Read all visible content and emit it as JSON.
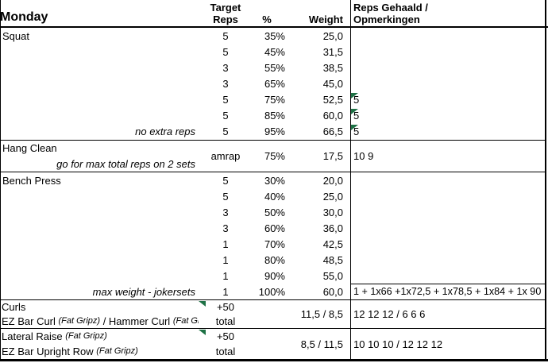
{
  "sheet": {
    "title": "Monday",
    "flag_color": "#1e7145",
    "header": {
      "reps_line1": "Target",
      "reps_line2": "Reps",
      "pct": "%",
      "weight": "Weight",
      "result_line1": "Reps Gehaald /",
      "result_line2": "Opmerkingen"
    },
    "sections": [
      {
        "name": "Squat",
        "type": "rows",
        "rows": [
          {
            "reps": "5",
            "pct": "35%",
            "weight": "25,0"
          },
          {
            "reps": "5",
            "pct": "45%",
            "weight": "31,5"
          },
          {
            "reps": "3",
            "pct": "55%",
            "weight": "38,5"
          },
          {
            "reps": "3",
            "pct": "65%",
            "weight": "45,0"
          },
          {
            "reps": "5",
            "pct": "75%",
            "weight": "52,5",
            "result": "5",
            "result_flag": true
          },
          {
            "reps": "5",
            "pct": "85%",
            "weight": "60,0",
            "result": "5",
            "result_flag": true
          },
          {
            "note": "no extra reps",
            "reps": "5",
            "pct": "95%",
            "weight": "66,5",
            "result": "5",
            "result_flag": true
          }
        ]
      },
      {
        "name": "Hang Clean",
        "type": "merged",
        "note": "go for max total reps on 2 sets",
        "reps": "amrap",
        "pct": "75%",
        "weight": "17,5",
        "result": "10 9"
      },
      {
        "name": "Bench Press",
        "type": "rows",
        "rows": [
          {
            "reps": "5",
            "pct": "30%",
            "weight": "20,0"
          },
          {
            "reps": "5",
            "pct": "40%",
            "weight": "25,0"
          },
          {
            "reps": "3",
            "pct": "50%",
            "weight": "30,0"
          },
          {
            "reps": "3",
            "pct": "60%",
            "weight": "36,0"
          },
          {
            "reps": "1",
            "pct": "70%",
            "weight": "42,5"
          },
          {
            "reps": "1",
            "pct": "80%",
            "weight": "48,5"
          },
          {
            "reps": "1",
            "pct": "90%",
            "weight": "55,0"
          },
          {
            "note": "max weight - jokersets",
            "reps": "1",
            "pct": "100%",
            "weight": "60,0",
            "result": "1 + 1x66 +1x72,5 + 1x78,5 + 1x84 + 1x 90",
            "result_border_top": true
          }
        ]
      },
      {
        "type": "superset",
        "note_flag": true,
        "line1": [
          {
            "t": "Curls",
            "i": false
          }
        ],
        "line2": [
          {
            "t": "EZ Bar Curl ",
            "i": false
          },
          {
            "t": "(Fat Gripz)",
            "i": true
          },
          {
            "t": " / Hammer Curl ",
            "i": false
          },
          {
            "t": "(Fat Gripz)",
            "i": true
          }
        ],
        "reps_line1": "+50",
        "reps_line2": "total",
        "weight": "11,5 / 8,5",
        "result": "12 12 12 / 6 6 6"
      },
      {
        "type": "superset",
        "note_flag": true,
        "line1": [
          {
            "t": "Lateral Raise ",
            "i": false
          },
          {
            "t": "(Fat Gripz)",
            "i": true
          }
        ],
        "line2": [
          {
            "t": "EZ Bar Upright Row ",
            "i": false
          },
          {
            "t": "(Fat Gripz)",
            "i": true
          }
        ],
        "reps_line1": "+50",
        "reps_line2": "total",
        "weight": "8,5 / 11,5",
        "result": "10 10 10 / 12 12 12"
      }
    ]
  }
}
